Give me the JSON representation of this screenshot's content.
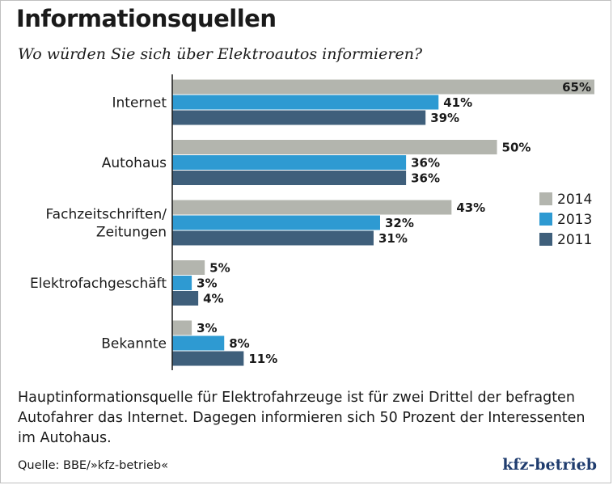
{
  "header": {
    "title": "Informationsquellen",
    "subtitle": "Wo würden Sie sich über Elektroautos informieren?"
  },
  "caption": "Hauptinformationsquelle für Elektrofahrzeuge ist für zwei Drittel der befragten Autofahrer das Internet. Dagegen informieren sich 50 Prozent der Interessenten im Autohaus.",
  "footer": {
    "source": "Quelle: BBE/»kfz-betrieb«",
    "logo": "kfz-betrieb"
  },
  "colors": {
    "s2014": "#b3b5ae",
    "s2013": "#2e9ad2",
    "s2011": "#3f5f7b",
    "axis": "#1a1a1a",
    "logo": "#1f3c6e"
  },
  "chart_data": {
    "type": "bar",
    "orientation": "horizontal",
    "title": "Informationsquellen",
    "subtitle": "Wo würden Sie sich über Elektroautos informieren?",
    "value_suffix": "%",
    "xlim": [
      0,
      65
    ],
    "legend_position": "right",
    "categories": [
      [
        "Internet"
      ],
      [
        "Autohaus"
      ],
      [
        "Fachzeitschriften/",
        "Zeitungen"
      ],
      [
        "Elektrofachgeschäft"
      ],
      [
        "Bekannte"
      ]
    ],
    "series": [
      {
        "name": "2014",
        "color": "#b3b5ae",
        "values": [
          65,
          50,
          43,
          5,
          3
        ]
      },
      {
        "name": "2013",
        "color": "#2e9ad2",
        "values": [
          41,
          36,
          32,
          3,
          8
        ]
      },
      {
        "name": "2011",
        "color": "#3f5f7b",
        "values": [
          39,
          36,
          31,
          4,
          11
        ]
      }
    ]
  }
}
